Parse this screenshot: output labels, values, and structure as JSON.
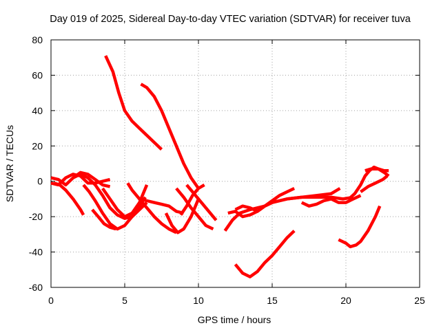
{
  "chart_data": {
    "type": "line",
    "title": "Day 019 of 2025, Sidereal Day-to-day VTEC variation (SDTVAR) for receiver tuva",
    "xlabel": "GPS time / hours",
    "ylabel": "SDTVAR / TECUs",
    "xlim": [
      0,
      25
    ],
    "ylim": [
      -60,
      80
    ],
    "xticks": [
      "0",
      "5",
      "10",
      "15",
      "20",
      "25"
    ],
    "yticks": [
      "80",
      "60",
      "40",
      "20",
      "0",
      "-20",
      "-40",
      "-60"
    ],
    "grid": true,
    "color": "#ff0000",
    "series": [
      {
        "name": "s1",
        "x": [
          3.7,
          4.2,
          4.6,
          5.0,
          5.5,
          6.0,
          6.5,
          7.0,
          7.5
        ],
        "y": [
          71,
          62,
          50,
          40,
          34,
          30,
          26,
          22,
          18
        ]
      },
      {
        "name": "s2",
        "x": [
          6.1,
          6.5,
          7.0,
          7.5,
          8.0,
          8.5,
          9.0,
          9.5,
          10.0
        ],
        "y": [
          55,
          53,
          48,
          40,
          30,
          20,
          10,
          2,
          -4
        ]
      },
      {
        "name": "s3",
        "x": [
          0.0,
          0.5,
          1.0,
          1.5,
          2.0,
          2.5,
          3.0,
          3.5,
          4.0
        ],
        "y": [
          2,
          1,
          -2,
          2,
          5,
          4,
          1,
          -2,
          -3
        ]
      },
      {
        "name": "s4",
        "x": [
          0.0,
          0.5,
          1.0,
          1.5,
          2.0,
          2.5,
          3.0,
          3.5,
          4.0
        ],
        "y": [
          -1,
          -2,
          2,
          4,
          3,
          -1,
          -1,
          0,
          1
        ]
      },
      {
        "name": "s5",
        "x": [
          0.2,
          0.6,
          1.0,
          1.5,
          2.0,
          2.2
        ],
        "y": [
          -1,
          -2,
          -5,
          -10,
          -16,
          -19
        ]
      },
      {
        "name": "s6",
        "x": [
          1.5,
          2.0,
          2.5,
          3.0,
          3.5,
          4.0,
          4.5,
          5.0,
          5.5,
          6.0,
          6.5
        ],
        "y": [
          2,
          4,
          2,
          -2,
          -8,
          -15,
          -19,
          -21,
          -20,
          -16,
          -12
        ]
      },
      {
        "name": "s7",
        "x": [
          2.2,
          2.6,
          3.0,
          3.5,
          4.0,
          4.5,
          5.0,
          5.5,
          6.0,
          6.4
        ],
        "y": [
          -2,
          -6,
          -11,
          -18,
          -24,
          -27,
          -25,
          -20,
          -14,
          -9
        ]
      },
      {
        "name": "s8",
        "x": [
          2.8,
          3.2,
          3.6,
          4.0,
          4.4
        ],
        "y": [
          -16,
          -20,
          -24,
          -26,
          -27
        ]
      },
      {
        "name": "s9",
        "x": [
          5.2,
          5.5,
          6.0,
          6.5,
          7.0,
          7.5,
          8.0,
          8.5
        ],
        "y": [
          -1,
          -5,
          -10,
          -15,
          -20,
          -24,
          -27,
          -29
        ]
      },
      {
        "name": "s10",
        "x": [
          3.5,
          4.0,
          4.5,
          5.0,
          5.5,
          6.0,
          6.5
        ],
        "y": [
          -4,
          -10,
          -16,
          -20,
          -18,
          -12,
          -2
        ]
      },
      {
        "name": "s11",
        "x": [
          6.0,
          6.5,
          7.0,
          7.5,
          8.0,
          8.5,
          9.0
        ],
        "y": [
          -10,
          -11,
          -12,
          -13,
          -14,
          -17,
          -18
        ]
      },
      {
        "name": "s12",
        "x": [
          7.8,
          8.2,
          8.6,
          9.0,
          9.5,
          10.0
        ],
        "y": [
          -18,
          -25,
          -29,
          -27,
          -20,
          -10
        ]
      },
      {
        "name": "s13",
        "x": [
          8.8,
          9.2,
          9.6,
          10.0,
          10.4
        ],
        "y": [
          -19,
          -14,
          -8,
          -4,
          -2
        ]
      },
      {
        "name": "s14",
        "x": [
          8.5,
          9.0,
          9.5,
          10.0,
          10.5,
          11.0
        ],
        "y": [
          -4,
          -9,
          -15,
          -20,
          -25,
          -27
        ]
      },
      {
        "name": "s15",
        "x": [
          9.2,
          9.7,
          10.2,
          10.7,
          11.2
        ],
        "y": [
          -2,
          -7,
          -12,
          -17,
          -22
        ]
      },
      {
        "name": "s16",
        "x": [
          12.5,
          13.0,
          13.5,
          14.0,
          14.5,
          15.0,
          15.5,
          16.0,
          16.5
        ],
        "y": [
          -47,
          -52,
          -54,
          -51,
          -46,
          -42,
          -37,
          -32,
          -28
        ]
      },
      {
        "name": "s17",
        "x": [
          11.8,
          12.3,
          12.8,
          13.5,
          14.0,
          14.5,
          15.0,
          15.5,
          16.0,
          16.5
        ],
        "y": [
          -28,
          -22,
          -18,
          -16,
          -15,
          -14,
          -11,
          -8,
          -6,
          -4
        ]
      },
      {
        "name": "s18",
        "x": [
          12.5,
          13.0,
          13.5,
          14.0,
          14.5,
          15.0,
          15.5,
          16.0,
          17.0,
          18.0,
          19.0,
          19.6
        ],
        "y": [
          -16,
          -14,
          -15,
          -17,
          -14,
          -12,
          -11,
          -10,
          -9,
          -8,
          -7,
          -4
        ]
      },
      {
        "name": "s19",
        "x": [
          12.0,
          12.5,
          13.0,
          13.5,
          14.0,
          14.5,
          15.0,
          16.0,
          17.0,
          18.0,
          19.0,
          19.8,
          20.5
        ],
        "y": [
          -18,
          -17,
          -20,
          -19,
          -17,
          -14,
          -12,
          -10,
          -9,
          -9,
          -9,
          -10,
          -9
        ]
      },
      {
        "name": "s20",
        "x": [
          17.0,
          17.5,
          18.0,
          18.5,
          19.0,
          19.5,
          20.0,
          20.5,
          21.0
        ],
        "y": [
          -12,
          -14,
          -13,
          -11,
          -10,
          -12,
          -12,
          -10,
          -8
        ]
      },
      {
        "name": "s21",
        "x": [
          19.5,
          20.0,
          20.3,
          20.7,
          21.0,
          21.5,
          22.0,
          22.3
        ],
        "y": [
          -33,
          -35,
          -37,
          -36,
          -34,
          -28,
          -20,
          -14
        ]
      },
      {
        "name": "s22",
        "x": [
          20.2,
          20.6,
          21.0,
          21.3,
          21.6,
          21.9,
          22.2,
          22.6,
          22.9
        ],
        "y": [
          -10,
          -7,
          -2,
          3,
          6,
          8,
          7,
          5,
          3
        ]
      },
      {
        "name": "s23",
        "x": [
          21.0,
          21.5,
          22.0,
          22.5,
          22.8
        ],
        "y": [
          -6,
          -3,
          -1,
          1,
          3
        ]
      },
      {
        "name": "s24",
        "x": [
          21.3,
          21.7,
          22.2,
          22.6,
          22.9
        ],
        "y": [
          6,
          7,
          7,
          6,
          6
        ]
      }
    ]
  }
}
